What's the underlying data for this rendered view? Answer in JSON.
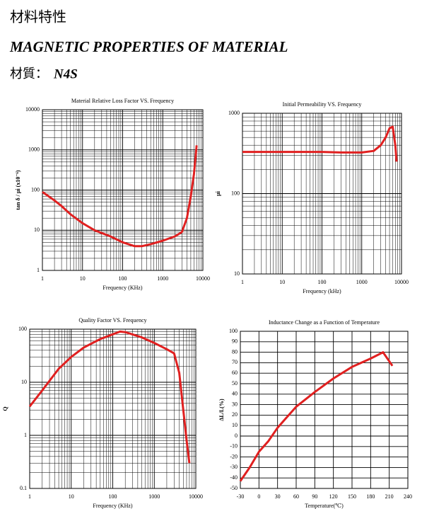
{
  "header": {
    "title_cn": "材料特性",
    "title_en": "MAGNETIC PROPERTIES OF MATERIAL",
    "material_label": "材質：",
    "material": "N4S"
  },
  "chart_data": [
    {
      "type": "line",
      "title": "Material Relative Loss Factor VS. Frequency",
      "xlabel": "Frequency (KHz)",
      "ylabel": "tan δ / μi (x10⁻⁶)",
      "xlog": true,
      "ylog": true,
      "grid": true,
      "minor_grid": true,
      "color": "#e02020",
      "xlim": [
        1,
        10000
      ],
      "ylim": [
        1,
        10000
      ],
      "xticks": [
        1,
        10,
        100,
        1000,
        10000
      ],
      "yticks": [
        1,
        10,
        100,
        1000,
        10000
      ],
      "x": [
        1,
        2,
        3,
        5,
        10,
        20,
        50,
        100,
        200,
        300,
        500,
        1000,
        2000,
        3000,
        4000,
        5000,
        6000,
        7000
      ],
      "values": [
        90,
        55,
        40,
        25,
        15,
        10,
        7,
        5,
        4,
        4,
        4.5,
        5.5,
        7,
        9,
        20,
        70,
        250,
        1300
      ]
    },
    {
      "type": "line",
      "title": "Initial Permeability VS. Frequency",
      "xlabel": "Frequency (kHz)",
      "ylabel": "μi",
      "xlog": true,
      "ylog": true,
      "grid": true,
      "minor_grid": true,
      "color": "#e02020",
      "xlim": [
        1,
        10000
      ],
      "ylim": [
        10,
        1000
      ],
      "xticks": [
        1,
        10,
        100,
        1000,
        10000
      ],
      "yticks": [
        10,
        100,
        1000
      ],
      "x": [
        1,
        10,
        100,
        300,
        1000,
        2000,
        3000,
        4000,
        5000,
        6000,
        7000,
        7500
      ],
      "values": [
        330,
        330,
        330,
        325,
        325,
        340,
        400,
        500,
        650,
        680,
        400,
        250
      ]
    },
    {
      "type": "line",
      "title": "Quality Factor VS. Frequency",
      "xlabel": "Frequency (KHz)",
      "ylabel": "Q",
      "xlog": true,
      "ylog": true,
      "grid": true,
      "minor_grid": true,
      "color": "#e02020",
      "xlim": [
        1,
        10000
      ],
      "ylim": [
        0.1,
        100
      ],
      "xticks": [
        1,
        10,
        100,
        1000,
        10000
      ],
      "yticks": [
        0.1,
        1,
        10,
        100
      ],
      "x": [
        1,
        2,
        5,
        10,
        20,
        50,
        100,
        150,
        200,
        500,
        1000,
        2000,
        3000,
        4000,
        5000,
        6000,
        7000
      ],
      "values": [
        3.5,
        7,
        18,
        30,
        45,
        65,
        80,
        90,
        88,
        70,
        55,
        42,
        35,
        15,
        3,
        0.8,
        0.3
      ]
    },
    {
      "type": "line",
      "title": "Inductance Change as a Function of Temperature",
      "xlabel": "Temperature(℃)",
      "ylabel": "ΔL/L(%)",
      "xlog": false,
      "ylog": false,
      "grid": true,
      "minor_grid": false,
      "color": "#e02020",
      "xlim": [
        -30,
        240
      ],
      "ylim": [
        -50,
        100
      ],
      "xticks": [
        -30,
        0,
        30,
        60,
        90,
        120,
        150,
        180,
        210,
        240
      ],
      "yticks": [
        -50,
        -40,
        -30,
        -20,
        -10,
        0,
        10,
        20,
        30,
        40,
        50,
        60,
        70,
        80,
        90,
        100
      ],
      "x": [
        -30,
        -15,
        0,
        15,
        30,
        45,
        60,
        90,
        120,
        150,
        180,
        200,
        215
      ],
      "values": [
        -43,
        -30,
        -15,
        -5,
        8,
        18,
        28,
        42,
        55,
        66,
        74,
        80,
        67
      ]
    }
  ]
}
